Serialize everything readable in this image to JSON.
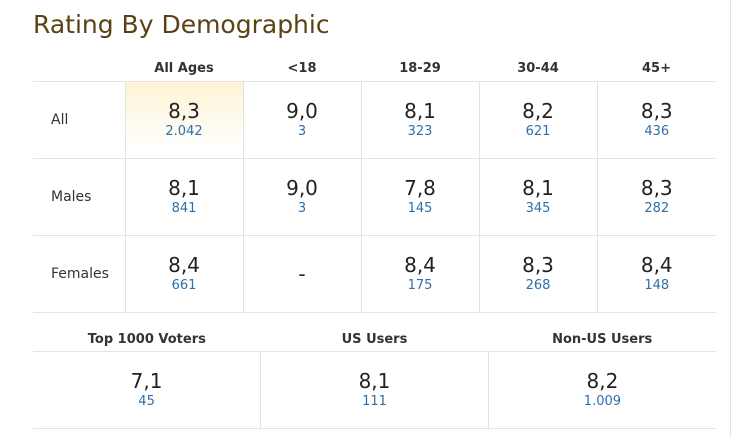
{
  "title": "Rating By Demographic",
  "columns": [
    "All Ages",
    "<18",
    "18-29",
    "30-44",
    "45+"
  ],
  "rows": [
    {
      "label": "All",
      "cells": [
        {
          "rating": "8,3",
          "votes": "2.042"
        },
        {
          "rating": "9,0",
          "votes": "3"
        },
        {
          "rating": "8,1",
          "votes": "323"
        },
        {
          "rating": "8,2",
          "votes": "621"
        },
        {
          "rating": "8,3",
          "votes": "436"
        }
      ]
    },
    {
      "label": "Males",
      "cells": [
        {
          "rating": "8,1",
          "votes": "841"
        },
        {
          "rating": "9,0",
          "votes": "3"
        },
        {
          "rating": "7,8",
          "votes": "145"
        },
        {
          "rating": "8,1",
          "votes": "345"
        },
        {
          "rating": "8,3",
          "votes": "282"
        }
      ]
    },
    {
      "label": "Females",
      "cells": [
        {
          "rating": "8,4",
          "votes": "661"
        },
        {
          "empty": "-"
        },
        {
          "rating": "8,4",
          "votes": "175"
        },
        {
          "rating": "8,3",
          "votes": "268"
        },
        {
          "rating": "8,4",
          "votes": "148"
        }
      ]
    }
  ],
  "groups": [
    {
      "label": "Top 1000 Voters",
      "rating": "7,1",
      "votes": "45"
    },
    {
      "label": "US Users",
      "rating": "8,1",
      "votes": "111"
    },
    {
      "label": "Non-US Users",
      "rating": "8,2",
      "votes": "1.009"
    }
  ]
}
